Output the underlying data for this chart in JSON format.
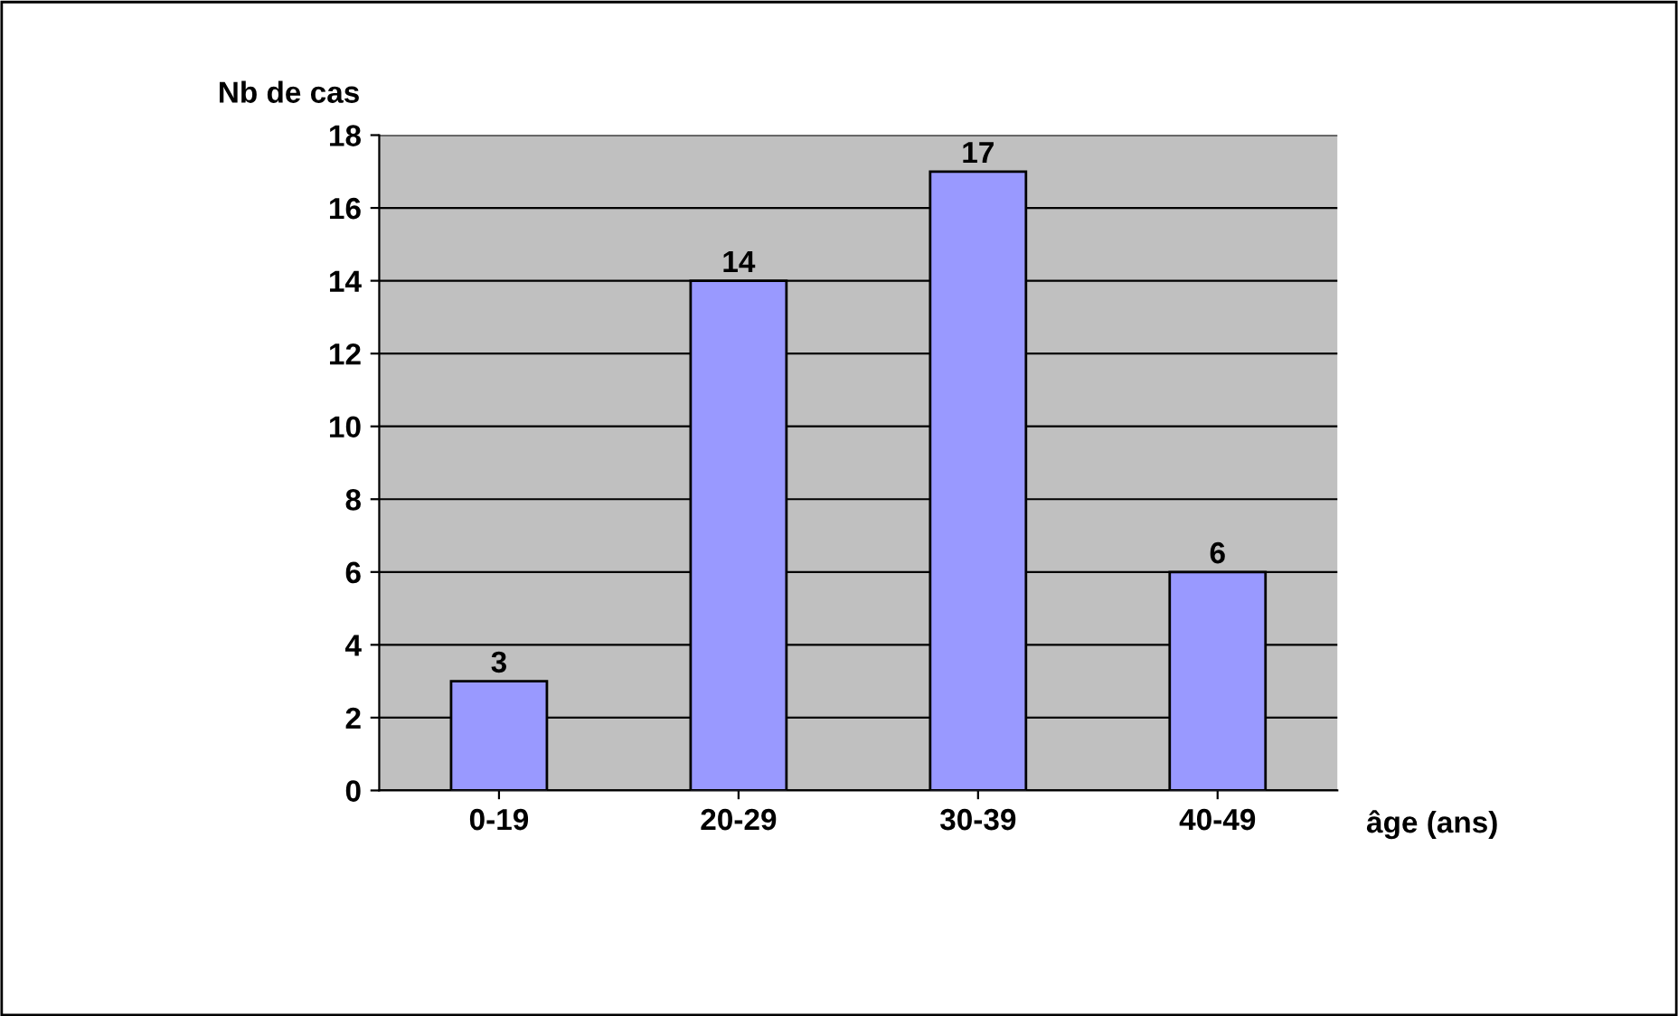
{
  "chart_data": {
    "type": "bar",
    "categories": [
      "0-19",
      "20-29",
      "30-39",
      "40-49"
    ],
    "values": [
      3,
      14,
      17,
      6
    ],
    "color": "#9999ff",
    "ylabel": "Nb de cas",
    "xlabel": "âge (ans)",
    "ylim": [
      0,
      18
    ],
    "yticks": [
      0,
      2,
      4,
      6,
      8,
      10,
      12,
      14,
      16,
      18
    ],
    "grid": "y",
    "data_labels": true
  }
}
